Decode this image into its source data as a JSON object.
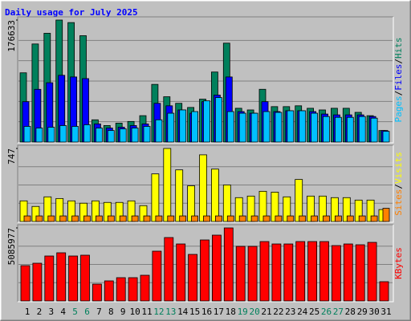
{
  "title": "Daily usage for July 2025",
  "legend_separator": "/",
  "chart_data": [
    {
      "type": "bar",
      "ylim": [
        0,
        176633
      ],
      "yticks": [
        176633
      ],
      "series": [
        {
          "name": "Hits",
          "color": "#00805c",
          "values": [
            100250,
            142000,
            157500,
            176633,
            173000,
            154000,
            32200,
            23900,
            27400,
            29800,
            38200,
            83500,
            65600,
            56100,
            50100,
            62100,
            101400,
            143200,
            48900,
            46500,
            76400,
            51300,
            51300,
            52500,
            48900,
            46500,
            48900,
            48900,
            43000,
            38200,
            16700
          ]
        },
        {
          "name": "Files",
          "color": "#0000ff",
          "values": [
            58457,
            76352,
            85896,
            96633,
            94247,
            91861,
            26246,
            20281,
            21474,
            23860,
            26246,
            56071,
            52492,
            46527,
            41755,
            58457,
            68001,
            94247,
            44141,
            41755,
            58457,
            44141,
            45334,
            45334,
            44141,
            40562,
            39369,
            39369,
            39369,
            36983,
            16702
          ]
        },
        {
          "name": "Pages",
          "color": "#00c0ff",
          "values": [
            22667,
            20281,
            21474,
            23860,
            22667,
            25053,
            20281,
            16702,
            19088,
            20281,
            22667,
            32211,
            41755,
            46527,
            44141,
            59650,
            64422,
            44141,
            41755,
            41755,
            44141,
            42948,
            45334,
            45334,
            41755,
            36983,
            35790,
            35790,
            36983,
            34597,
            15509
          ]
        }
      ]
    },
    {
      "type": "bar",
      "ylim": [
        0,
        747
      ],
      "yticks": [
        747
      ],
      "series": [
        {
          "name": "Visits",
          "color": "#ffff00",
          "values": [
            211,
            154,
            252,
            235,
            211,
            187,
            211,
            195,
            195,
            211,
            162,
            487,
            747,
            528,
            365,
            682,
            536,
            374,
            244,
            260,
            309,
            300,
            252,
            430,
            260,
            260,
            244,
            244,
            219,
            219,
            122
          ]
        },
        {
          "name": "Sites",
          "color": "#ff8000",
          "values": [
            57,
            57,
            57,
            57,
            57,
            57,
            57,
            57,
            57,
            57,
            57,
            57,
            57,
            57,
            57,
            57,
            57,
            57,
            57,
            57,
            57,
            57,
            57,
            57,
            57,
            57,
            57,
            57,
            57,
            57,
            135
          ]
        }
      ]
    },
    {
      "type": "bar",
      "ylim": [
        0,
        5085977
      ],
      "yticks": [
        5085977
      ],
      "categories": [
        "1",
        "2",
        "3",
        "4",
        "5",
        "6",
        "7",
        "8",
        "9",
        "10",
        "11",
        "12",
        "13",
        "14",
        "15",
        "16",
        "17",
        "18",
        "19",
        "20",
        "21",
        "22",
        "23",
        "24",
        "25",
        "26",
        "27",
        "28",
        "29",
        "30",
        "31"
      ],
      "category_colors": [
        "#000000",
        "#000000",
        "#000000",
        "#000000",
        "#00805c",
        "#00805c",
        "#000000",
        "#000000",
        "#000000",
        "#000000",
        "#000000",
        "#00805c",
        "#00805c",
        "#000000",
        "#000000",
        "#000000",
        "#000000",
        "#000000",
        "#00805c",
        "#00805c",
        "#000000",
        "#000000",
        "#000000",
        "#000000",
        "#000000",
        "#00805c",
        "#00805c",
        "#000000",
        "#000000",
        "#000000",
        "#000000"
      ],
      "series": [
        {
          "name": "KBytes",
          "color": "#ff0000",
          "values": [
            2459160,
            2626830,
            3129840,
            3353400,
            3129840,
            3185730,
            1173690,
            1397250,
            1620810,
            1620810,
            1788480,
            3465180,
            4415310,
            3968190,
            3241620,
            4247640,
            4582980,
            5085977,
            3800520,
            3800520,
            4135860,
            3968190,
            3968190,
            4135860,
            4135860,
            4135860,
            3856410,
            3968190,
            3912300,
            4079970,
            1341360
          ]
        }
      ]
    }
  ]
}
